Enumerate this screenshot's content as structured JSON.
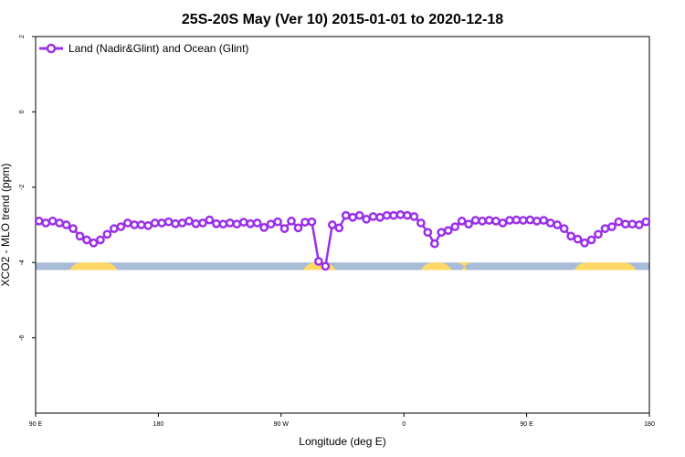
{
  "chart_data": {
    "type": "line",
    "title": "25S-20S May (Ver 10)   2015-01-01 to 2020-12-18",
    "xlabel": "Longitude (deg E)",
    "ylabel": "XCO2 - MLO trend (ppm)",
    "xlim": [
      90,
      450
    ],
    "ylim": [
      -8,
      2
    ],
    "x_ticks": [
      {
        "value": 90,
        "label": "90 E"
      },
      {
        "value": 162,
        "label": "180"
      },
      {
        "value": 234,
        "label": "90 W"
      },
      {
        "value": 306,
        "label": "0"
      },
      {
        "value": 378,
        "label": "90 E"
      },
      {
        "value": 450,
        "label": "180"
      }
    ],
    "y_ticks": [
      2,
      0,
      -2,
      -4,
      -6
    ],
    "legend_position": "top-left",
    "grid": false,
    "colors": {
      "series": "#9b30e8",
      "land": "#ffd966",
      "ocean": "#a8bcd8"
    },
    "series": [
      {
        "name": "Land (Nadir&Glint) and Ocean (Glint)",
        "x": [
          92,
          96,
          100,
          104,
          108,
          112,
          116,
          120,
          124,
          128,
          132,
          136,
          140,
          144,
          148,
          152,
          156,
          160,
          164,
          168,
          172,
          176,
          180,
          184,
          188,
          192,
          196,
          200,
          204,
          208,
          212,
          216,
          220,
          224,
          228,
          232,
          236,
          240,
          244,
          248,
          252,
          256,
          260,
          264,
          268,
          272,
          276,
          280,
          284,
          288,
          292,
          296,
          300,
          304,
          308,
          312,
          316,
          320,
          324,
          328,
          332,
          336,
          340,
          344,
          348,
          352,
          356,
          360,
          364,
          368,
          372,
          376,
          380,
          384,
          388,
          392,
          396,
          400,
          404,
          408,
          412,
          416,
          420,
          424,
          428,
          432,
          436,
          440,
          444,
          448
        ],
        "y": [
          -2.9,
          -2.95,
          -2.9,
          -2.95,
          -3.0,
          -3.1,
          -3.3,
          -3.4,
          -3.48,
          -3.4,
          -3.25,
          -3.1,
          -3.05,
          -2.95,
          -3.0,
          -3.0,
          -3.02,
          -2.95,
          -2.95,
          -2.92,
          -2.97,
          -2.95,
          -2.9,
          -2.97,
          -2.95,
          -2.87,
          -2.97,
          -2.98,
          -2.95,
          -2.98,
          -2.93,
          -2.97,
          -2.95,
          -3.07,
          -2.98,
          -2.92,
          -3.1,
          -2.9,
          -3.08,
          -2.93,
          -2.92,
          -3.97,
          -4.1,
          -3.0,
          -3.08,
          -2.75,
          -2.8,
          -2.75,
          -2.85,
          -2.78,
          -2.8,
          -2.75,
          -2.75,
          -2.73,
          -2.75,
          -2.78,
          -2.95,
          -3.2,
          -3.5,
          -3.2,
          -3.15,
          -3.05,
          -2.9,
          -2.98,
          -2.88,
          -2.9,
          -2.88,
          -2.9,
          -2.95,
          -2.88,
          -2.87,
          -2.88,
          -2.87,
          -2.9,
          -2.88,
          -2.95,
          -3.0,
          -3.1,
          -3.3,
          -3.38,
          -3.48,
          -3.4,
          -3.25,
          -3.1,
          -3.05,
          -2.92,
          -2.98,
          -2.98,
          -3.0,
          -2.92
        ]
      }
    ],
    "land_ocean_strip": {
      "y_range": [
        -4.2,
        -4.0
      ],
      "land_segments": [
        [
          110,
          138
        ],
        [
          247,
          266
        ],
        [
          316,
          334
        ],
        [
          340,
          343
        ],
        [
          406,
          442
        ]
      ]
    }
  }
}
